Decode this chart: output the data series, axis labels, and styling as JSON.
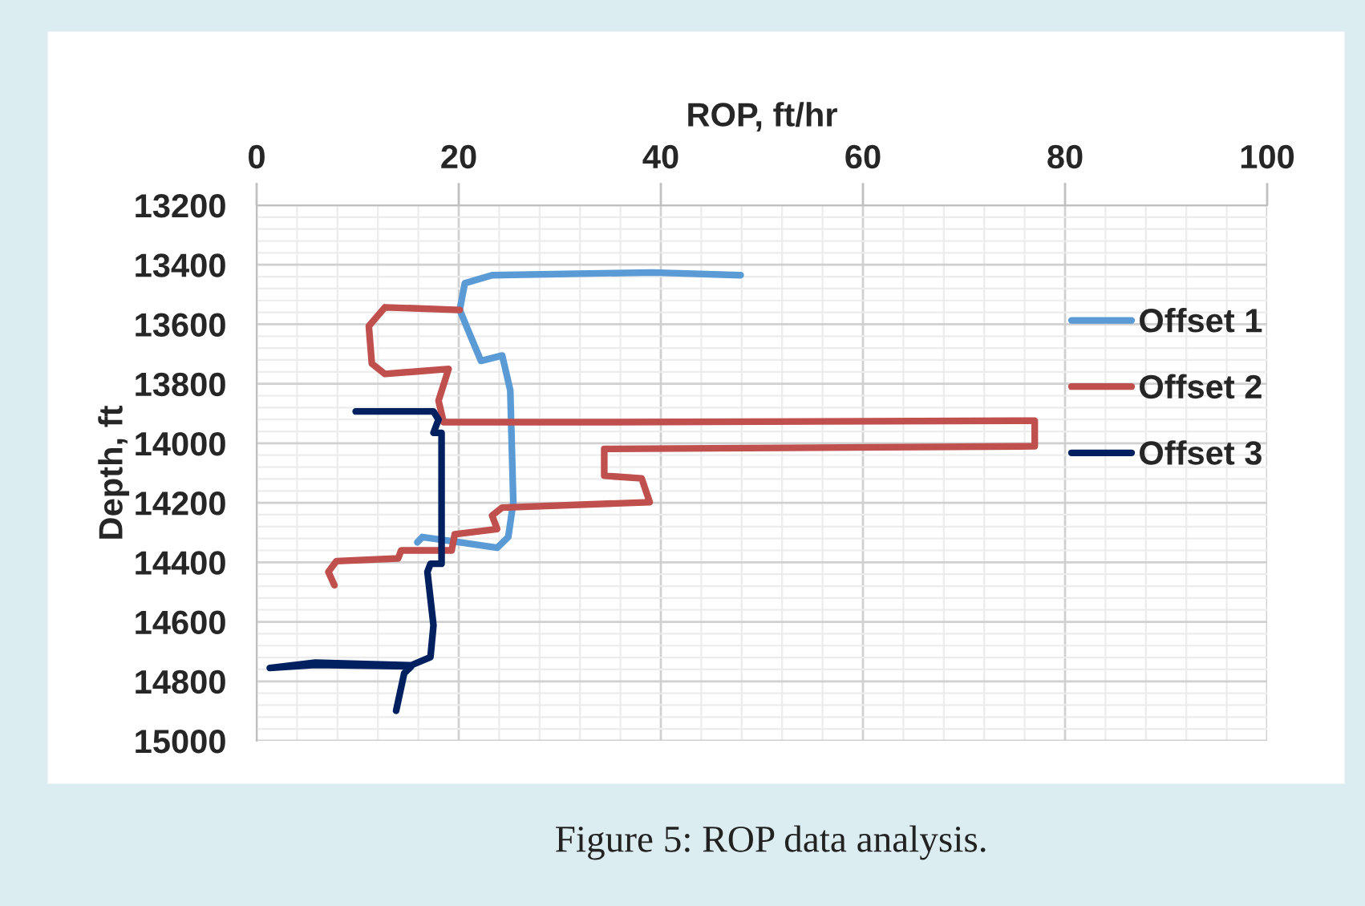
{
  "chart_data": {
    "type": "line",
    "xlabel": "ROP, ft/hr",
    "ylabel": "Depth, ft",
    "xlim": [
      0,
      100
    ],
    "xticks": [
      0,
      20,
      40,
      60,
      80,
      100
    ],
    "ylim": [
      15000,
      13200
    ],
    "yticks": [
      13200,
      13400,
      13600,
      13800,
      14000,
      14200,
      14400,
      14600,
      14800,
      15000
    ],
    "grid": true,
    "legend": "right",
    "annotations": [
      "Figure 5: ROP data analysis."
    ],
    "series": [
      {
        "name": "Offset 1",
        "color": "#5b9bd5",
        "x": [
          47.9,
          39.2,
          23.3,
          20.6,
          20.1,
          21.2,
          22.2,
          24.3,
          25.1,
          25.4,
          24.9,
          23.8,
          20.1,
          16.4,
          15.9
        ],
        "values": [
          13435,
          13426,
          13435,
          13462,
          13552,
          13642,
          13723,
          13705,
          13822,
          14198,
          14315,
          14351,
          14333,
          14315,
          14333
        ]
      },
      {
        "name": "Offset 2",
        "color": "#c0504d",
        "x": [
          20.1,
          12.7,
          11.1,
          11.4,
          12.7,
          19.0,
          18.0,
          18.5,
          33.9,
          77.0,
          77.0,
          34.4,
          34.4,
          38.1,
          38.9,
          24.3,
          23.3,
          23.8,
          19.6,
          19.3,
          14.3,
          14.0,
          7.9,
          7.1,
          7.7
        ],
        "values": [
          13552,
          13543,
          13606,
          13732,
          13767,
          13750,
          13857,
          13929,
          13929,
          13924,
          14010,
          14019,
          14109,
          14118,
          14198,
          14216,
          14243,
          14288,
          14306,
          14360,
          14360,
          14387,
          14396,
          14432,
          14477
        ]
      },
      {
        "name": "Offset 3",
        "color": "#002060",
        "x": [
          9.8,
          17.5,
          18.0,
          17.5,
          18.3,
          18.3,
          17.2,
          16.9,
          17.5,
          17.2,
          15.3,
          5.8,
          1.3,
          5.8,
          15.3,
          14.6,
          13.8
        ],
        "values": [
          13893,
          13893,
          13920,
          13965,
          13965,
          14405,
          14405,
          14432,
          14612,
          14719,
          14746,
          14737,
          14755,
          14745,
          14750,
          14773,
          14899
        ]
      }
    ]
  }
}
